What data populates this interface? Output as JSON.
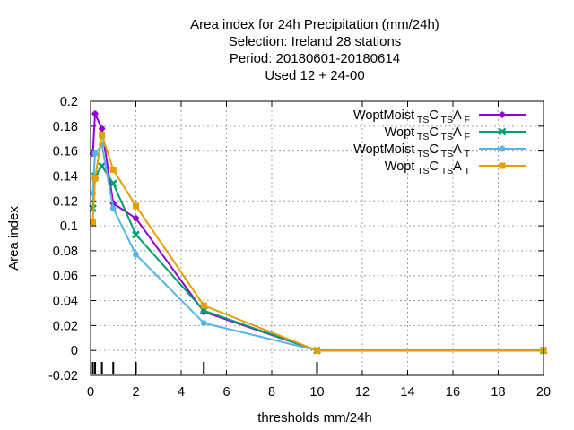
{
  "chart_data": {
    "type": "line",
    "title_lines": [
      "Area index  for 24h Precipitation (mm/24h)",
      "Selection: Ireland     28 stations",
      "Period: 20180601-20180614",
      "Used  12 + 24-00"
    ],
    "xlabel": "thresholds mm/24h",
    "ylabel": "Area index",
    "xlim": [
      0,
      20
    ],
    "ylim": [
      -0.02,
      0.2
    ],
    "xticks": [
      0,
      2,
      4,
      6,
      8,
      10,
      12,
      14,
      16,
      18,
      20
    ],
    "yticks": [
      -0.02,
      0,
      0.02,
      0.04,
      0.06,
      0.08,
      0.1,
      0.12,
      0.14,
      0.16,
      0.18,
      0.2
    ],
    "ytick_labels": [
      "-0.02",
      "0",
      "0.02",
      "0.04",
      "0.06",
      "0.08",
      "0.1",
      "0.12",
      "0.14",
      "0.16",
      "0.18",
      "0.2"
    ],
    "grid": true,
    "legend_position": "top-right",
    "threshold_marks": [
      0.1,
      0.2,
      0.5,
      1,
      2,
      5,
      10
    ],
    "series": [
      {
        "legend": [
          {
            "t": "WoptMoist"
          },
          {
            "t": " TS",
            "sub": true
          },
          {
            "t": "C"
          },
          {
            "t": " TS",
            "sub": true
          },
          {
            "t": "A"
          },
          {
            "t": " F",
            "sub": true
          }
        ],
        "color": "#9400d3",
        "marker": "plus",
        "x": [
          0.1,
          0.2,
          0.5,
          1,
          2,
          5,
          10,
          20
        ],
        "y": [
          0.158,
          0.19,
          0.178,
          0.118,
          0.106,
          0.031,
          0.0,
          0.0
        ]
      },
      {
        "legend": [
          {
            "t": "Wopt"
          },
          {
            "t": " TS",
            "sub": true
          },
          {
            "t": "C"
          },
          {
            "t": " TS",
            "sub": true
          },
          {
            "t": "A"
          },
          {
            "t": " F",
            "sub": true
          }
        ],
        "color": "#009e73",
        "marker": "cross",
        "x": [
          0.1,
          0.2,
          0.5,
          1,
          2,
          5,
          10,
          20
        ],
        "y": [
          0.114,
          0.14,
          0.148,
          0.134,
          0.093,
          0.032,
          0.0,
          0.0
        ]
      },
      {
        "legend": [
          {
            "t": "WoptMoist"
          },
          {
            "t": " TS",
            "sub": true
          },
          {
            "t": "C"
          },
          {
            "t": " TS",
            "sub": true
          },
          {
            "t": "A"
          },
          {
            "t": " T",
            "sub": true
          }
        ],
        "color": "#56b4e9",
        "marker": "star",
        "x": [
          0.1,
          0.2,
          0.5,
          1,
          2,
          5,
          10,
          20
        ],
        "y": [
          0.126,
          0.158,
          0.165,
          0.114,
          0.077,
          0.022,
          0.0,
          0.0
        ]
      },
      {
        "legend": [
          {
            "t": "Wopt"
          },
          {
            "t": " TS",
            "sub": true
          },
          {
            "t": "C"
          },
          {
            "t": " TS",
            "sub": true
          },
          {
            "t": "A"
          },
          {
            "t": " T",
            "sub": true
          }
        ],
        "color": "#e69f00",
        "marker": "box",
        "x": [
          0.1,
          0.2,
          0.5,
          1,
          2,
          5,
          10,
          20
        ],
        "y": [
          0.103,
          0.138,
          0.173,
          0.145,
          0.116,
          0.036,
          0.0,
          0.0
        ]
      }
    ]
  }
}
